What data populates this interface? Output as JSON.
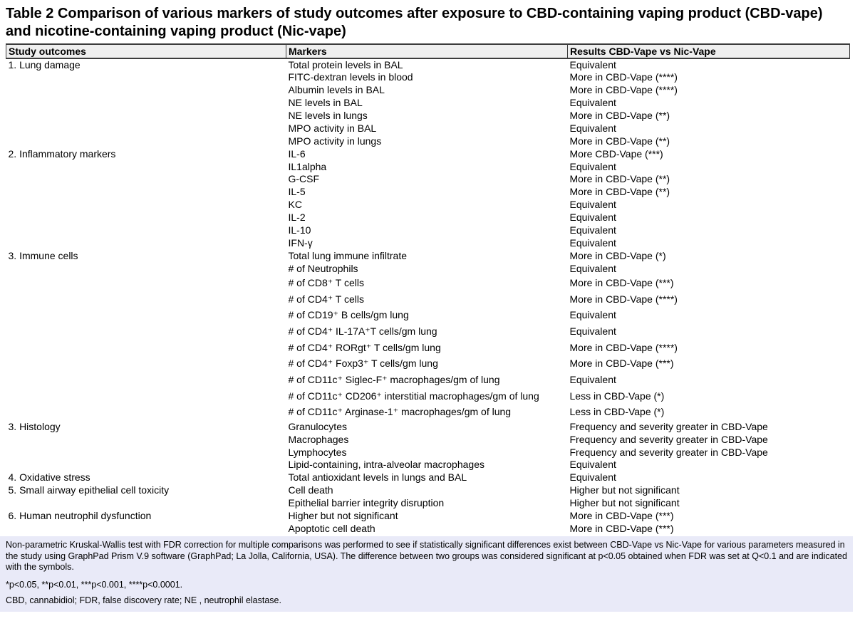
{
  "title": "Table 2 Comparison of various markers of study outcomes after exposure to CBD-containing vaping product (CBD-vape) and nicotine-containing vaping product (Nic-vape)",
  "columns": [
    "Study outcomes",
    "Markers",
    "Results CBD-Vape vs Nic-Vape"
  ],
  "sections": [
    {
      "outcome": "1. Lung damage",
      "rows": [
        {
          "marker": "Total protein levels in BAL",
          "result": "Equivalent"
        },
        {
          "marker": "FITC-dextran levels in blood",
          "result": "More in CBD-Vape (****)"
        },
        {
          "marker": "Albumin levels in BAL",
          "result": "More in CBD-Vape (****)"
        },
        {
          "marker": "NE levels in BAL",
          "result": "Equivalent"
        },
        {
          "marker": "NE levels in lungs",
          "result": "More in CBD-Vape (**)"
        },
        {
          "marker": "MPO activity in BAL",
          "result": "Equivalent"
        },
        {
          "marker": "MPO activity in lungs",
          "result": "More in CBD-Vape (**)"
        }
      ]
    },
    {
      "outcome": "2. Inflammatory markers",
      "rows": [
        {
          "marker": "IL-6",
          "result": "More CBD-Vape (***)"
        },
        {
          "marker": "IL1alpha",
          "result": "Equivalent"
        },
        {
          "marker": "G-CSF",
          "result": "More in CBD-Vape (**)"
        },
        {
          "marker": "IL-5",
          "result": "More in CBD-Vape (**)"
        },
        {
          "marker": "KC",
          "result": "Equivalent"
        },
        {
          "marker": "IL-2",
          "result": "Equivalent"
        },
        {
          "marker": "IL-10",
          "result": "Equivalent"
        },
        {
          "marker": "IFN-γ",
          "result": "Equivalent"
        }
      ]
    },
    {
      "outcome": "3. Immune cells",
      "rows": [
        {
          "marker": "Total lung immune infiltrate",
          "result": "More in CBD-Vape (*)"
        },
        {
          "marker": "# of Neutrophils",
          "result": "Equivalent"
        },
        {
          "marker": "# of CD8⁺ T cells",
          "result": "More in CBD-Vape (***)"
        },
        {
          "marker": "# of CD4⁺ T cells",
          "result": "More in CBD-Vape (****)"
        },
        {
          "marker": "# of CD19⁺ B cells/gm lung",
          "result": "Equivalent"
        },
        {
          "marker": "# of CD4⁺ IL-17A⁺T cells/gm lung",
          "result": "Equivalent"
        },
        {
          "marker": "# of CD4⁺ RORgt⁺ T cells/gm lung",
          "result": "More in CBD-Vape (****)"
        },
        {
          "marker": "# of CD4⁺ Foxp3⁺ T cells/gm lung",
          "result": "More in CBD-Vape (***)"
        },
        {
          "marker": "# of CD11c⁺ Siglec-F⁺ macrophages/gm of lung",
          "result": "Equivalent"
        },
        {
          "marker": "# of CD11c⁺ CD206⁺ interstitial macrophages/gm of lung",
          "result": "Less in CBD-Vape (*)"
        },
        {
          "marker": "# of CD11c⁺ Arginase-1⁺ macrophages/gm of lung",
          "result": "Less in CBD-Vape (*)"
        }
      ]
    },
    {
      "outcome": "3. Histology",
      "rows": [
        {
          "marker": "Granulocytes",
          "result": "Frequency and severity greater in CBD-Vape"
        },
        {
          "marker": "Macrophages",
          "result": "Frequency and severity greater in CBD-Vape"
        },
        {
          "marker": "Lymphocytes",
          "result": "Frequency and severity greater in CBD-Vape"
        },
        {
          "marker": "Lipid-containing, intra-alveolar macrophages",
          "result": "Equivalent"
        }
      ]
    },
    {
      "outcome": "4. Oxidative stress",
      "rows": [
        {
          "marker": "Total antioxidant levels in lungs and BAL",
          "result": "Equivalent"
        }
      ]
    },
    {
      "outcome": "5. Small airway epithelial cell toxicity",
      "rows": [
        {
          "marker": "Cell death",
          "result": "Higher but not significant"
        },
        {
          "marker": "Epithelial barrier integrity disruption",
          "result": "Higher but not significant"
        }
      ]
    },
    {
      "outcome": "6. Human neutrophil dysfunction",
      "rows": [
        {
          "marker": "Higher but not significant",
          "result": "More in CBD-Vape (***)"
        },
        {
          "marker": "Apoptotic cell death",
          "result": "More in CBD-Vape (***)"
        }
      ]
    }
  ],
  "footnote": {
    "methods": "Non-parametric Kruskal-Wallis test with FDR correction for multiple comparisons was performed to see if statistically significant differences exist between CBD-Vape vs Nic-Vape for various parameters measured in the study using GraphPad Prism V.9 software (GraphPad; La Jolla, California, USA). The difference between two groups was considered significant at p<0.05 obtained when FDR was set at Q<0.1 and are indicated with the symbols.",
    "significance": "*p<0.05, **p<0.01, ***p<0.001, ****p<0.0001.",
    "abbreviations": "CBD, cannabidiol; FDR, false discovery rate; NE , neutrophil elastase."
  },
  "colors": {
    "header_bg": "#efefef",
    "footnote_bg": "#e9eaf8",
    "border": "#3c3c3c"
  }
}
